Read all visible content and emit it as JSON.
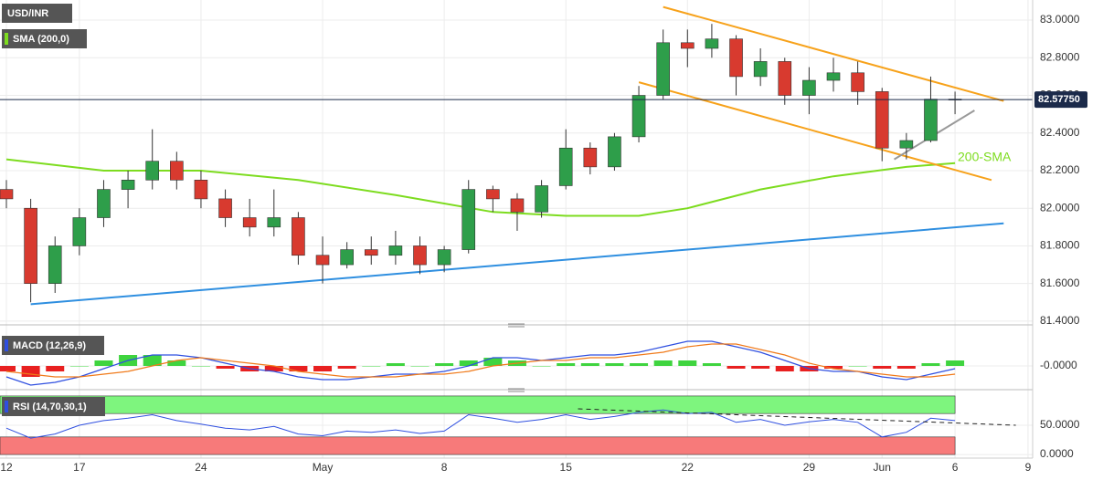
{
  "chart_data": {
    "type": "candlestick",
    "title": "USD/INR",
    "x": [
      0,
      1,
      2,
      3,
      4,
      5,
      6,
      7,
      8,
      9,
      10,
      11,
      12,
      13,
      14,
      15,
      16,
      17,
      18,
      19,
      20,
      21,
      22,
      23,
      24,
      25,
      26,
      27,
      28,
      29,
      30,
      31,
      32,
      33,
      34,
      35,
      36,
      37,
      38,
      39
    ],
    "open": [
      82.1,
      82.0,
      81.6,
      81.8,
      81.95,
      82.1,
      82.15,
      82.25,
      82.15,
      82.05,
      81.95,
      81.9,
      81.95,
      81.75,
      81.7,
      81.78,
      81.75,
      81.8,
      81.7,
      81.78,
      82.1,
      82.05,
      81.98,
      82.12,
      82.32,
      82.22,
      82.38,
      82.6,
      82.88,
      82.85,
      82.9,
      82.7,
      82.78,
      82.6,
      82.68,
      82.72,
      82.62,
      82.32,
      82.36,
      82.58
    ],
    "high": [
      82.15,
      82.05,
      81.85,
      82.0,
      82.15,
      82.2,
      82.42,
      82.3,
      82.2,
      82.1,
      82.05,
      82.1,
      81.98,
      81.85,
      81.82,
      81.85,
      81.88,
      81.85,
      81.8,
      82.15,
      82.12,
      82.08,
      82.15,
      82.42,
      82.35,
      82.4,
      82.65,
      82.95,
      82.95,
      82.98,
      82.92,
      82.85,
      82.8,
      82.75,
      82.8,
      82.78,
      82.64,
      82.4,
      82.7,
      82.62
    ],
    "low": [
      82.0,
      81.5,
      81.55,
      81.75,
      81.9,
      82.0,
      82.1,
      82.1,
      82.0,
      81.9,
      81.85,
      81.85,
      81.7,
      81.6,
      81.68,
      81.7,
      81.7,
      81.65,
      81.66,
      81.76,
      81.98,
      81.88,
      81.95,
      82.1,
      82.18,
      82.2,
      82.35,
      82.58,
      82.75,
      82.8,
      82.6,
      82.65,
      82.55,
      82.5,
      82.62,
      82.55,
      82.25,
      82.26,
      82.35,
      82.5
    ],
    "close": [
      82.05,
      81.6,
      81.8,
      81.95,
      82.1,
      82.15,
      82.25,
      82.15,
      82.05,
      81.95,
      81.9,
      81.95,
      81.75,
      81.7,
      81.78,
      81.75,
      81.8,
      81.7,
      81.78,
      82.1,
      82.05,
      81.98,
      82.12,
      82.32,
      82.22,
      82.38,
      82.6,
      82.88,
      82.85,
      82.9,
      82.7,
      82.78,
      82.6,
      82.68,
      82.72,
      82.62,
      82.32,
      82.36,
      82.58,
      82.58
    ],
    "up_color": "#2e9e4a",
    "down_color": "#d83a2f",
    "xlim": [
      -0.263,
      42.19
    ],
    "xticks": [
      {
        "value": 0,
        "label": "12"
      },
      {
        "value": 3,
        "label": "17"
      },
      {
        "value": 8,
        "label": "24"
      },
      {
        "value": 13,
        "label": "May"
      },
      {
        "value": 18,
        "label": "8"
      },
      {
        "value": 23,
        "label": "15"
      },
      {
        "value": 28,
        "label": "22"
      },
      {
        "value": 33,
        "label": "29"
      },
      {
        "value": 36,
        "label": "Jun"
      },
      {
        "value": 39,
        "label": "6"
      },
      {
        "value": 42,
        "label": "9"
      }
    ],
    "ylim": [
      81.385,
      83.107
    ],
    "yticks": [
      {
        "value": 83,
        "label": "83.0000"
      },
      {
        "value": 82.8,
        "label": "82.8000"
      },
      {
        "value": 82.6,
        "label": "82.6000"
      },
      {
        "value": 82.4,
        "label": "82.4000"
      },
      {
        "value": 82.2,
        "label": "82.2000"
      },
      {
        "value": 82,
        "label": "82.0000"
      },
      {
        "value": 81.8,
        "label": "81.8000"
      },
      {
        "value": 81.6,
        "label": "81.6000"
      },
      {
        "value": 81.4,
        "label": "81.4000"
      }
    ],
    "grid": true,
    "current_price": {
      "value": 82.5775,
      "label": "82.57750",
      "color": "#1b2a4a"
    },
    "sma": {
      "name": "SMA (200,0)",
      "color": "#7ddc1f",
      "x": [
        0,
        4,
        8,
        12,
        16,
        20,
        23,
        26,
        28,
        31,
        34,
        37,
        39
      ],
      "values": [
        82.26,
        82.2,
        82.2,
        82.15,
        82.07,
        81.98,
        81.96,
        81.96,
        82.0,
        82.1,
        82.17,
        82.22,
        82.24
      ]
    },
    "annotation": "200-SMA",
    "trendlines": [
      {
        "color": "#f7a21b",
        "x": [
          27,
          41
        ],
        "y": [
          83.07,
          82.57
        ]
      },
      {
        "color": "#f7a21b",
        "x": [
          26,
          40.5
        ],
        "y": [
          82.67,
          82.15
        ]
      },
      {
        "color": "#2f8fe0",
        "x": [
          1,
          41
        ],
        "y": [
          81.49,
          81.92
        ]
      },
      {
        "color": "#999999",
        "x": [
          36.5,
          39.8
        ],
        "y": [
          82.26,
          82.52
        ]
      }
    ],
    "macd": {
      "name": "MACD (12,26,9)",
      "ylim": [
        -0.08,
        0.12
      ],
      "yticks": [
        {
          "value": 0,
          "label": "-0.0000"
        }
      ],
      "macd": {
        "color": "#2f4fe0",
        "values": [
          -0.04,
          -0.07,
          -0.06,
          -0.04,
          -0.01,
          0.02,
          0.04,
          0.04,
          0.03,
          0.01,
          -0.01,
          -0.02,
          -0.04,
          -0.05,
          -0.05,
          -0.04,
          -0.03,
          -0.03,
          -0.02,
          0.0,
          0.03,
          0.03,
          0.02,
          0.03,
          0.04,
          0.04,
          0.05,
          0.07,
          0.09,
          0.09,
          0.07,
          0.05,
          0.02,
          -0.01,
          -0.02,
          -0.02,
          -0.04,
          -0.05,
          -0.03,
          -0.01
        ]
      },
      "signal": {
        "color": "#f07a1a",
        "values": [
          -0.02,
          -0.03,
          -0.04,
          -0.04,
          -0.03,
          -0.02,
          0.0,
          0.02,
          0.03,
          0.02,
          0.01,
          0.0,
          -0.02,
          -0.03,
          -0.04,
          -0.04,
          -0.04,
          -0.03,
          -0.03,
          -0.02,
          0.0,
          0.01,
          0.02,
          0.02,
          0.03,
          0.03,
          0.04,
          0.05,
          0.07,
          0.08,
          0.08,
          0.06,
          0.04,
          0.01,
          -0.01,
          -0.02,
          -0.03,
          -0.04,
          -0.04,
          -0.03
        ]
      },
      "histogram": {
        "pos_color": "#3fd43f",
        "neg_color": "#e82020",
        "values": [
          -0.02,
          -0.04,
          -0.02,
          0,
          0.02,
          0.04,
          0.04,
          0.02,
          0,
          -0.01,
          -0.02,
          -0.02,
          -0.02,
          -0.02,
          -0.01,
          0,
          0.01,
          0,
          0.01,
          0.02,
          0.03,
          0.02,
          0,
          0.01,
          0.01,
          0.01,
          0.01,
          0.02,
          0.02,
          0.01,
          -0.01,
          -0.01,
          -0.02,
          -0.02,
          -0.01,
          0,
          -0.01,
          -0.01,
          0.01,
          0.02
        ]
      }
    },
    "rsi": {
      "name": "RSI (14,70,30,1)",
      "ylim": [
        -3,
        103
      ],
      "yticks": [
        {
          "value": 50,
          "label": "50.0000"
        },
        {
          "value": 0,
          "label": "0.0000"
        }
      ],
      "color": "#2f4fe0",
      "values": [
        45,
        28,
        35,
        50,
        58,
        62,
        68,
        58,
        52,
        45,
        42,
        48,
        35,
        32,
        40,
        38,
        42,
        36,
        40,
        68,
        62,
        55,
        60,
        68,
        60,
        65,
        72,
        76,
        70,
        72,
        55,
        60,
        50,
        56,
        60,
        55,
        30,
        38,
        62,
        58
      ],
      "bands": [
        {
          "from": 70,
          "to": 100,
          "color": "#7ef57e"
        },
        {
          "from": 0,
          "to": 30,
          "color": "#f77a7a"
        }
      ],
      "trendline": {
        "color": "#222222",
        "x": [
          23.5,
          41.5
        ],
        "y": [
          78,
          50
        ]
      }
    }
  }
}
